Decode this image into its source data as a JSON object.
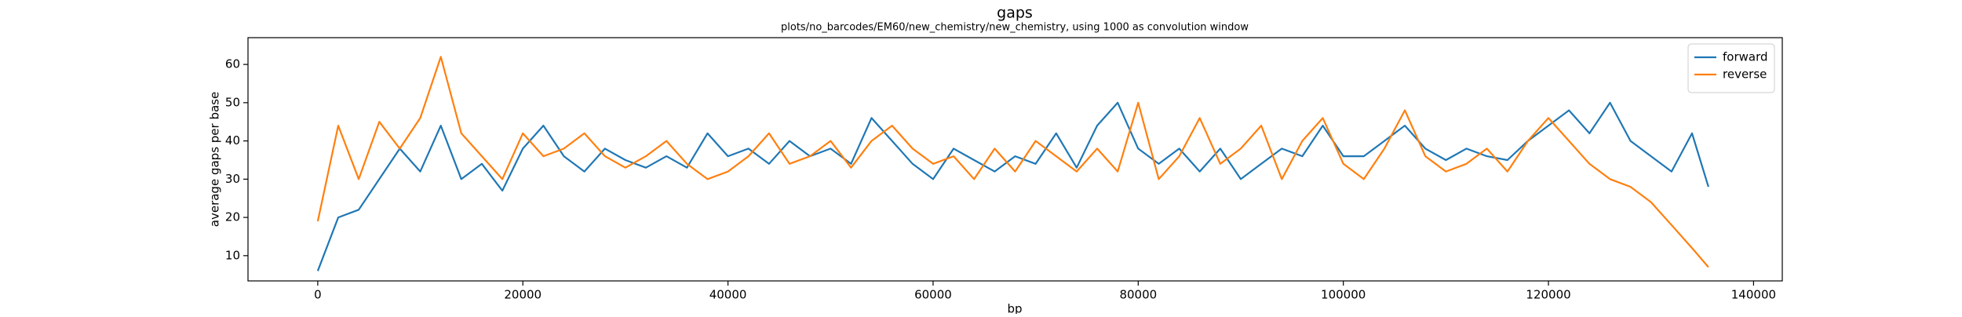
{
  "chart_data": {
    "type": "line",
    "title": "gaps",
    "subtitle": "plots/no_barcodes/EM60/new_chemistry/new_chemistry, using 1000 as convolution window",
    "xlabel": "bp",
    "ylabel": "average gaps per base",
    "x": [
      0,
      2000,
      4000,
      6000,
      8000,
      10000,
      12000,
      14000,
      16000,
      18000,
      20000,
      22000,
      24000,
      26000,
      28000,
      30000,
      32000,
      34000,
      36000,
      38000,
      40000,
      42000,
      44000,
      46000,
      48000,
      50000,
      52000,
      54000,
      56000,
      58000,
      60000,
      62000,
      64000,
      66000,
      68000,
      70000,
      72000,
      74000,
      76000,
      78000,
      80000,
      82000,
      84000,
      86000,
      88000,
      90000,
      92000,
      94000,
      96000,
      98000,
      100000,
      102000,
      104000,
      106000,
      108000,
      110000,
      112000,
      114000,
      116000,
      118000,
      120000,
      122000,
      124000,
      126000,
      128000,
      130000,
      132000,
      134000,
      135600
    ],
    "series": [
      {
        "name": "forward",
        "color": "#1f77b4",
        "values": [
          6,
          20,
          22,
          30,
          38,
          32,
          44,
          30,
          34,
          27,
          38,
          44,
          36,
          32,
          38,
          35,
          33,
          36,
          33,
          42,
          36,
          38,
          34,
          40,
          36,
          38,
          34,
          46,
          40,
          34,
          30,
          38,
          35,
          32,
          36,
          34,
          42,
          33,
          44,
          50,
          38,
          34,
          38,
          32,
          38,
          30,
          34,
          38,
          36,
          44,
          36,
          36,
          40,
          44,
          38,
          35,
          38,
          36,
          35,
          40,
          44,
          48,
          42,
          50,
          40,
          36,
          32,
          42,
          28
        ]
      },
      {
        "name": "reverse",
        "color": "#ff7f0e",
        "values": [
          19,
          44,
          30,
          45,
          38,
          46,
          62,
          42,
          36,
          30,
          42,
          36,
          38,
          42,
          36,
          33,
          36,
          40,
          34,
          30,
          32,
          36,
          42,
          34,
          36,
          40,
          33,
          40,
          44,
          38,
          34,
          36,
          30,
          38,
          32,
          40,
          36,
          32,
          38,
          32,
          50,
          30,
          36,
          46,
          34,
          38,
          44,
          30,
          40,
          46,
          34,
          30,
          38,
          48,
          36,
          32,
          34,
          38,
          32,
          40,
          46,
          40,
          34,
          30,
          28,
          24,
          18,
          12,
          7
        ]
      }
    ],
    "xlim": [
      -6800,
      142800
    ],
    "ylim": [
      3.4,
      67
    ],
    "xticks": [
      0,
      20000,
      40000,
      60000,
      80000,
      100000,
      120000,
      140000
    ],
    "yticks": [
      10,
      20,
      30,
      40,
      50,
      60
    ],
    "legend": "upper right",
    "grid": false
  }
}
